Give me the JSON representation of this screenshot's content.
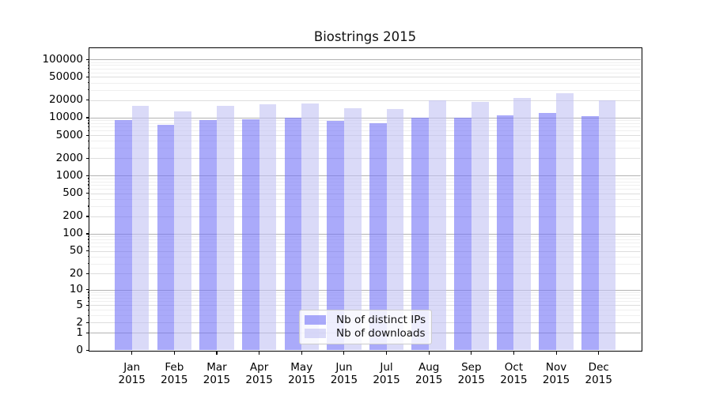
{
  "chart_data": {
    "type": "bar",
    "title": "Biostrings 2015",
    "categories": [
      "Jan",
      "Feb",
      "Mar",
      "Apr",
      "May",
      "Jun",
      "Jul",
      "Aug",
      "Sep",
      "Oct",
      "Nov",
      "Dec"
    ],
    "year_label": "2015",
    "series": [
      {
        "name": "Nb of distinct IPs",
        "color": "#7171f7",
        "alpha": 0.6,
        "values": [
          9000,
          7600,
          9100,
          9300,
          9900,
          8800,
          8100,
          10000,
          10000,
          11100,
          12000,
          10600
        ]
      },
      {
        "name": "Nb of downloads",
        "color": "#c1c1f3",
        "alpha": 0.6,
        "values": [
          15900,
          12600,
          16000,
          16700,
          17600,
          14700,
          14000,
          19800,
          18700,
          22000,
          26000,
          20100
        ]
      }
    ],
    "yscale": "log10(value+1)",
    "ytick_values": [
      0,
      1,
      2,
      5,
      10,
      20,
      50,
      100,
      200,
      500,
      1000,
      2000,
      5000,
      10000,
      20000,
      50000,
      100000
    ],
    "ylim": [
      0,
      156000
    ],
    "xlabel": "",
    "ylabel": "",
    "grid": "on",
    "gridline_colors": {
      "major": "#b3b3b3",
      "mid": "#dddddd",
      "minor": "#efefef"
    },
    "legend_position": "lower-center-inside"
  }
}
